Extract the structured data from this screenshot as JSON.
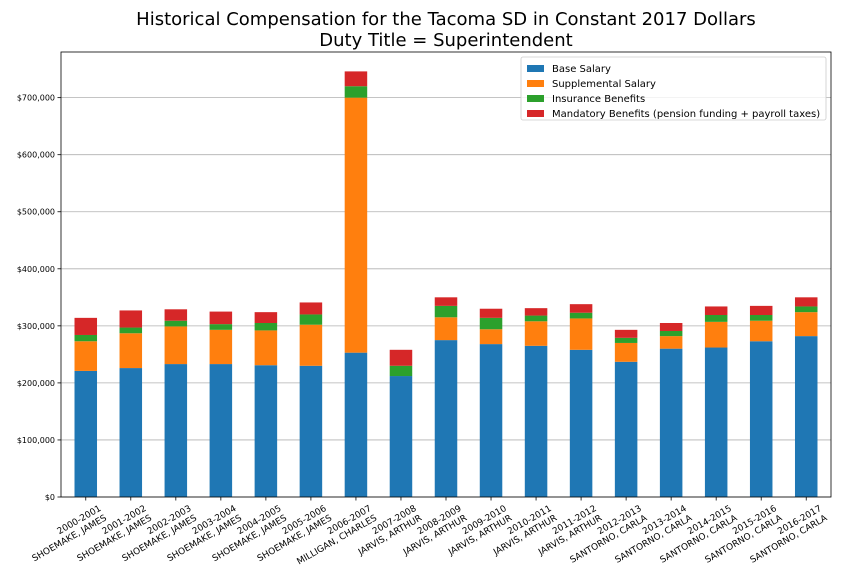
{
  "chart_data": {
    "type": "bar",
    "stacked": true,
    "title": "Historical Compensation for the Tacoma SD in Constant 2017 Dollars",
    "subtitle": "Duty Title = Superintendent",
    "xlabel": "",
    "ylabel": "",
    "ylim": [
      0,
      780000
    ],
    "yticks": [
      0,
      100000,
      200000,
      300000,
      400000,
      500000,
      600000,
      700000
    ],
    "ytick_labels": [
      "$0",
      "$100,000",
      "$200,000",
      "$300,000",
      "$400,000",
      "$500,000",
      "$600,000",
      "$700,000"
    ],
    "grid": "horizontal",
    "legend_position": "top-right",
    "categories": [
      [
        "2000-2001",
        "SHOEMAKE, JAMES"
      ],
      [
        "2001-2002",
        "SHOEMAKE, JAMES"
      ],
      [
        "2002-2003",
        "SHOEMAKE, JAMES"
      ],
      [
        "2003-2004",
        "SHOEMAKE, JAMES"
      ],
      [
        "2004-2005",
        "SHOEMAKE, JAMES"
      ],
      [
        "2005-2006",
        "SHOEMAKE, JAMES"
      ],
      [
        "2006-2007",
        "MILLIGAN, CHARLES"
      ],
      [
        "2007-2008",
        "JARVIS, ARTHUR"
      ],
      [
        "2008-2009",
        "JARVIS, ARTHUR"
      ],
      [
        "2009-2010",
        "JARVIS, ARTHUR"
      ],
      [
        "2010-2011",
        "JARVIS, ARTHUR"
      ],
      [
        "2011-2012",
        "JARVIS, ARTHUR"
      ],
      [
        "2012-2013",
        "SANTORNO, CARLA"
      ],
      [
        "2013-2014",
        "SANTORNO, CARLA"
      ],
      [
        "2014-2015",
        "SANTORNO, CARLA"
      ],
      [
        "2015-2016",
        "SANTORNO, CARLA"
      ],
      [
        "2016-2017",
        "SANTORNO, CARLA"
      ]
    ],
    "series": [
      {
        "name": "Base Salary",
        "color": "#1f77b4",
        "values": [
          221000,
          226000,
          233000,
          233000,
          231000,
          230000,
          253000,
          212000,
          275000,
          268000,
          265000,
          258000,
          237000,
          260000,
          262000,
          273000,
          282000
        ]
      },
      {
        "name": "Supplemental Salary",
        "color": "#ff7f0e",
        "values": [
          52000,
          61000,
          66000,
          60000,
          61000,
          72000,
          447000,
          0,
          40000,
          26000,
          43000,
          55000,
          33000,
          22000,
          45000,
          36000,
          42000
        ]
      },
      {
        "name": "Insurance Benefits",
        "color": "#2ca02c",
        "values": [
          11000,
          10000,
          10000,
          10000,
          13000,
          18000,
          20000,
          18000,
          20000,
          20000,
          10000,
          10000,
          9000,
          9000,
          12000,
          10000,
          10000
        ]
      },
      {
        "name": "Mandatory Benefits (pension funding + payroll taxes)",
        "color": "#d62728",
        "values": [
          30000,
          30000,
          20000,
          22000,
          19000,
          21000,
          26000,
          28000,
          15000,
          16000,
          13000,
          15000,
          14000,
          14000,
          15000,
          16000,
          16000
        ]
      }
    ]
  }
}
